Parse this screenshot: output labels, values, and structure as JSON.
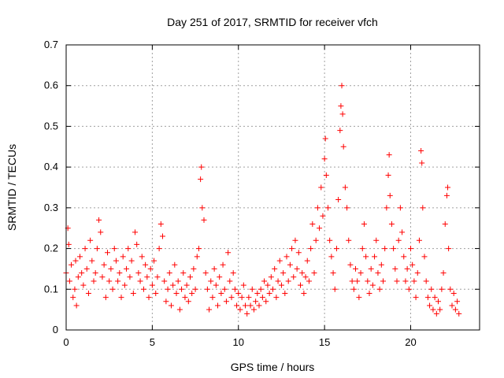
{
  "chart_data": {
    "type": "scatter",
    "title": "Day 251 of 2017, SRMTID for receiver vfch",
    "xlabel": "GPS time / hours",
    "ylabel": "SRMTID / TECUs",
    "xlim": [
      0,
      24
    ],
    "ylim": [
      0,
      0.7
    ],
    "xticks": [
      0,
      5,
      10,
      15,
      20
    ],
    "yticks": [
      0,
      0.1,
      0.2,
      0.3,
      0.4,
      0.5,
      0.6,
      0.7
    ],
    "xtick_labels": [
      "0",
      "5",
      "10",
      "15",
      "20"
    ],
    "ytick_labels": [
      "0",
      "0.1",
      "0.2",
      "0.3",
      "0.4",
      "0.5",
      "0.6",
      "0.7"
    ],
    "grid": true,
    "marker": "+",
    "color": "#ff0000",
    "series": [
      {
        "name": "SRMTID",
        "points": [
          [
            0.0,
            0.14
          ],
          [
            0.1,
            0.25
          ],
          [
            0.15,
            0.21
          ],
          [
            0.2,
            0.12
          ],
          [
            0.3,
            0.16
          ],
          [
            0.4,
            0.08
          ],
          [
            0.5,
            0.1
          ],
          [
            0.55,
            0.17
          ],
          [
            0.6,
            0.06
          ],
          [
            0.7,
            0.13
          ],
          [
            0.8,
            0.18
          ],
          [
            0.9,
            0.14
          ],
          [
            1.0,
            0.11
          ],
          [
            1.1,
            0.2
          ],
          [
            1.2,
            0.15
          ],
          [
            1.3,
            0.09
          ],
          [
            1.4,
            0.22
          ],
          [
            1.5,
            0.17
          ],
          [
            1.6,
            0.12
          ],
          [
            1.7,
            0.14
          ],
          [
            1.8,
            0.2
          ],
          [
            1.9,
            0.27
          ],
          [
            2.0,
            0.24
          ],
          [
            2.1,
            0.13
          ],
          [
            2.2,
            0.16
          ],
          [
            2.3,
            0.08
          ],
          [
            2.4,
            0.19
          ],
          [
            2.5,
            0.12
          ],
          [
            2.6,
            0.15
          ],
          [
            2.7,
            0.1
          ],
          [
            2.8,
            0.2
          ],
          [
            2.9,
            0.17
          ],
          [
            3.0,
            0.12
          ],
          [
            3.1,
            0.14
          ],
          [
            3.2,
            0.08
          ],
          [
            3.3,
            0.18
          ],
          [
            3.4,
            0.11
          ],
          [
            3.5,
            0.15
          ],
          [
            3.6,
            0.2
          ],
          [
            3.7,
            0.13
          ],
          [
            3.8,
            0.17
          ],
          [
            3.9,
            0.09
          ],
          [
            4.0,
            0.24
          ],
          [
            4.1,
            0.21
          ],
          [
            4.2,
            0.14
          ],
          [
            4.3,
            0.12
          ],
          [
            4.4,
            0.18
          ],
          [
            4.5,
            0.1
          ],
          [
            4.6,
            0.16
          ],
          [
            4.7,
            0.13
          ],
          [
            4.8,
            0.08
          ],
          [
            4.9,
            0.15
          ],
          [
            5.0,
            0.11
          ],
          [
            5.1,
            0.17
          ],
          [
            5.2,
            0.09
          ],
          [
            5.3,
            0.13
          ],
          [
            5.4,
            0.2
          ],
          [
            5.5,
            0.26
          ],
          [
            5.6,
            0.23
          ],
          [
            5.7,
            0.12
          ],
          [
            5.8,
            0.07
          ],
          [
            5.9,
            0.1
          ],
          [
            6.0,
            0.14
          ],
          [
            6.1,
            0.06
          ],
          [
            6.2,
            0.11
          ],
          [
            6.3,
            0.16
          ],
          [
            6.4,
            0.09
          ],
          [
            6.5,
            0.12
          ],
          [
            6.6,
            0.05
          ],
          [
            6.7,
            0.1
          ],
          [
            6.8,
            0.14
          ],
          [
            6.9,
            0.08
          ],
          [
            7.0,
            0.11
          ],
          [
            7.1,
            0.07
          ],
          [
            7.2,
            0.13
          ],
          [
            7.3,
            0.09
          ],
          [
            7.4,
            0.15
          ],
          [
            7.5,
            0.1
          ],
          [
            7.6,
            0.18
          ],
          [
            7.7,
            0.2
          ],
          [
            7.8,
            0.37
          ],
          [
            7.85,
            0.4
          ],
          [
            7.9,
            0.3
          ],
          [
            8.0,
            0.27
          ],
          [
            8.1,
            0.14
          ],
          [
            8.2,
            0.1
          ],
          [
            8.3,
            0.05
          ],
          [
            8.4,
            0.12
          ],
          [
            8.5,
            0.08
          ],
          [
            8.6,
            0.15
          ],
          [
            8.7,
            0.11
          ],
          [
            8.8,
            0.06
          ],
          [
            8.9,
            0.13
          ],
          [
            9.0,
            0.09
          ],
          [
            9.1,
            0.16
          ],
          [
            9.2,
            0.1
          ],
          [
            9.3,
            0.07
          ],
          [
            9.4,
            0.19
          ],
          [
            9.5,
            0.12
          ],
          [
            9.6,
            0.08
          ],
          [
            9.7,
            0.14
          ],
          [
            9.8,
            0.1
          ],
          [
            9.9,
            0.06
          ],
          [
            10.0,
            0.09
          ],
          [
            10.1,
            0.05
          ],
          [
            10.2,
            0.08
          ],
          [
            10.3,
            0.11
          ],
          [
            10.4,
            0.06
          ],
          [
            10.5,
            0.04
          ],
          [
            10.6,
            0.08
          ],
          [
            10.7,
            0.06
          ],
          [
            10.8,
            0.1
          ],
          [
            10.9,
            0.05
          ],
          [
            11.0,
            0.07
          ],
          [
            11.1,
            0.09
          ],
          [
            11.2,
            0.06
          ],
          [
            11.3,
            0.1
          ],
          [
            11.4,
            0.08
          ],
          [
            11.5,
            0.12
          ],
          [
            11.6,
            0.07
          ],
          [
            11.7,
            0.11
          ],
          [
            11.8,
            0.09
          ],
          [
            11.9,
            0.13
          ],
          [
            12.0,
            0.1
          ],
          [
            12.1,
            0.15
          ],
          [
            12.2,
            0.08
          ],
          [
            12.3,
            0.12
          ],
          [
            12.4,
            0.17
          ],
          [
            12.5,
            0.11
          ],
          [
            12.6,
            0.14
          ],
          [
            12.7,
            0.09
          ],
          [
            12.8,
            0.18
          ],
          [
            12.9,
            0.12
          ],
          [
            13.0,
            0.16
          ],
          [
            13.1,
            0.2
          ],
          [
            13.2,
            0.13
          ],
          [
            13.3,
            0.22
          ],
          [
            13.4,
            0.15
          ],
          [
            13.5,
            0.19
          ],
          [
            13.6,
            0.11
          ],
          [
            13.7,
            0.14
          ],
          [
            13.8,
            0.09
          ],
          [
            13.9,
            0.13
          ],
          [
            14.0,
            0.17
          ],
          [
            14.1,
            0.12
          ],
          [
            14.2,
            0.2
          ],
          [
            14.3,
            0.26
          ],
          [
            14.4,
            0.14
          ],
          [
            14.5,
            0.22
          ],
          [
            14.6,
            0.3
          ],
          [
            14.7,
            0.25
          ],
          [
            14.8,
            0.35
          ],
          [
            14.9,
            0.28
          ],
          [
            15.0,
            0.42
          ],
          [
            15.05,
            0.47
          ],
          [
            15.1,
            0.38
          ],
          [
            15.2,
            0.3
          ],
          [
            15.3,
            0.22
          ],
          [
            15.4,
            0.18
          ],
          [
            15.5,
            0.14
          ],
          [
            15.6,
            0.1
          ],
          [
            15.7,
            0.2
          ],
          [
            15.8,
            0.32
          ],
          [
            15.9,
            0.49
          ],
          [
            15.95,
            0.55
          ],
          [
            16.0,
            0.6
          ],
          [
            16.05,
            0.53
          ],
          [
            16.1,
            0.45
          ],
          [
            16.2,
            0.35
          ],
          [
            16.3,
            0.3
          ],
          [
            16.4,
            0.22
          ],
          [
            16.5,
            0.16
          ],
          [
            16.6,
            0.12
          ],
          [
            16.7,
            0.1
          ],
          [
            16.8,
            0.15
          ],
          [
            16.9,
            0.12
          ],
          [
            17.0,
            0.08
          ],
          [
            17.1,
            0.14
          ],
          [
            17.2,
            0.2
          ],
          [
            17.3,
            0.26
          ],
          [
            17.4,
            0.18
          ],
          [
            17.5,
            0.12
          ],
          [
            17.6,
            0.09
          ],
          [
            17.7,
            0.15
          ],
          [
            17.8,
            0.11
          ],
          [
            17.9,
            0.18
          ],
          [
            18.0,
            0.22
          ],
          [
            18.1,
            0.14
          ],
          [
            18.2,
            0.1
          ],
          [
            18.3,
            0.16
          ],
          [
            18.4,
            0.12
          ],
          [
            18.5,
            0.2
          ],
          [
            18.6,
            0.3
          ],
          [
            18.7,
            0.38
          ],
          [
            18.75,
            0.43
          ],
          [
            18.8,
            0.33
          ],
          [
            18.9,
            0.26
          ],
          [
            19.0,
            0.2
          ],
          [
            19.1,
            0.15
          ],
          [
            19.2,
            0.12
          ],
          [
            19.3,
            0.22
          ],
          [
            19.4,
            0.3
          ],
          [
            19.5,
            0.24
          ],
          [
            19.6,
            0.18
          ],
          [
            19.7,
            0.12
          ],
          [
            19.8,
            0.15
          ],
          [
            19.9,
            0.1
          ],
          [
            20.0,
            0.2
          ],
          [
            20.1,
            0.16
          ],
          [
            20.2,
            0.12
          ],
          [
            20.3,
            0.08
          ],
          [
            20.4,
            0.14
          ],
          [
            20.5,
            0.22
          ],
          [
            20.6,
            0.44
          ],
          [
            20.65,
            0.41
          ],
          [
            20.7,
            0.3
          ],
          [
            20.8,
            0.18
          ],
          [
            20.9,
            0.12
          ],
          [
            21.0,
            0.08
          ],
          [
            21.1,
            0.06
          ],
          [
            21.2,
            0.1
          ],
          [
            21.3,
            0.05
          ],
          [
            21.4,
            0.08
          ],
          [
            21.5,
            0.04
          ],
          [
            21.6,
            0.07
          ],
          [
            21.7,
            0.05
          ],
          [
            21.8,
            0.1
          ],
          [
            21.9,
            0.14
          ],
          [
            22.0,
            0.26
          ],
          [
            22.1,
            0.33
          ],
          [
            22.15,
            0.35
          ],
          [
            22.2,
            0.2
          ],
          [
            22.3,
            0.1
          ],
          [
            22.4,
            0.06
          ],
          [
            22.5,
            0.09
          ],
          [
            22.6,
            0.05
          ],
          [
            22.7,
            0.07
          ],
          [
            22.8,
            0.04
          ]
        ]
      }
    ]
  }
}
